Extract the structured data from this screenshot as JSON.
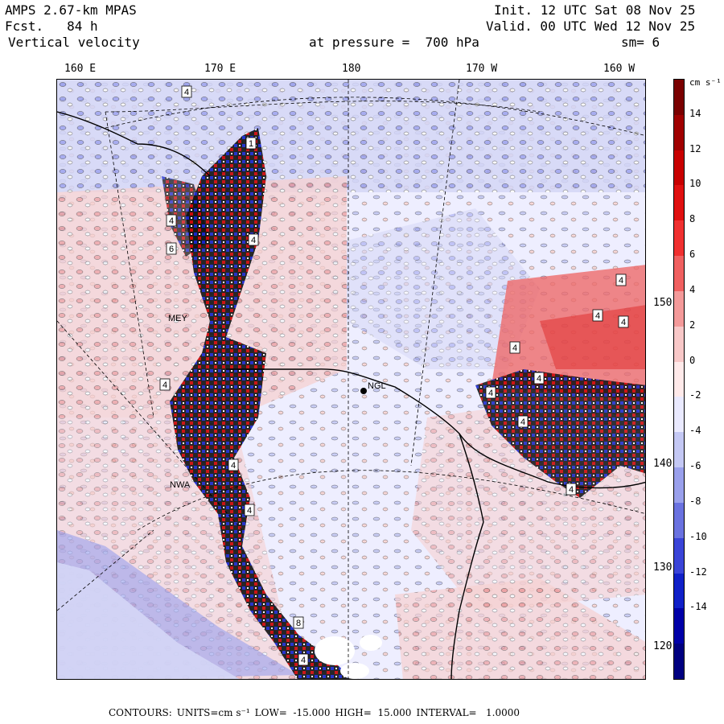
{
  "header": {
    "model": "AMPS 2.67-km MPAS",
    "forecast": "Fcst.   84 h",
    "field": "Vertical velocity",
    "init": "Init. 12 UTC Sat 08 Nov 25",
    "valid": "Valid. 00 UTC Wed 12 Nov 25",
    "pressure": "at pressure =  700 hPa",
    "smooth": "sm= 6"
  },
  "map": {
    "lon_labels": [
      "160 E",
      "170 E",
      "180",
      "170 W",
      "160 W"
    ],
    "lat_labels": [
      "150 W",
      "140 W",
      "130 W",
      "120 W"
    ],
    "place_labels": [
      "MEY",
      "NGL",
      "NWA"
    ],
    "box_labels": [
      "4",
      "1",
      "4",
      "6",
      "4",
      "4",
      "4",
      "4",
      "4",
      "4",
      "4",
      "4",
      "4",
      "4",
      "4",
      "4",
      "8",
      "4"
    ]
  },
  "colorbar": {
    "unit": "cm s⁻¹",
    "ticks": [
      "14",
      "12",
      "10",
      "8",
      "6",
      "4",
      "2",
      "0",
      "-2",
      "-4",
      "-6",
      "-8",
      "-10",
      "-12",
      "-14"
    ],
    "colors": [
      "#7a0000",
      "#a00000",
      "#c80000",
      "#e01010",
      "#f03030",
      "#f06060",
      "#f49a9a",
      "#f8c8c8",
      "#ffeaea",
      "#eaeaff",
      "#c4c8f4",
      "#9aa0ec",
      "#6a72e0",
      "#3a44d8",
      "#1020c8",
      "#0000a8",
      "#000080"
    ]
  },
  "footer": {
    "contours": "CONTOURS:",
    "units": "UNITS=cm s⁻¹",
    "low": "LOW=  -15.000",
    "high": "HIGH=  15.000",
    "interval": "INTERVAL=   1.0000"
  }
}
